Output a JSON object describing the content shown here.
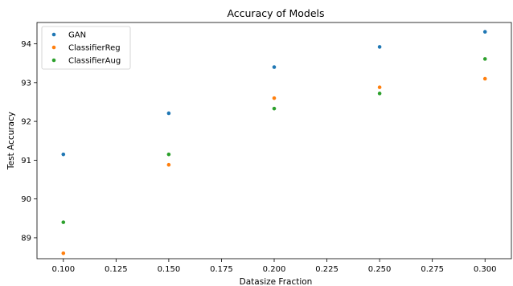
{
  "chart_data": {
    "type": "scatter",
    "title": "Accuracy of Models",
    "xlabel": "Datasize Fraction",
    "ylabel": "Test Accuracy",
    "xlim": [
      0.0875,
      0.3125
    ],
    "ylim": [
      88.46,
      94.55
    ],
    "x_ticks": [
      "0.100",
      "0.125",
      "0.150",
      "0.175",
      "0.200",
      "0.225",
      "0.250",
      "0.275",
      "0.300"
    ],
    "y_ticks": [
      "89",
      "90",
      "91",
      "92",
      "93",
      "94"
    ],
    "legend_position": "upper-left",
    "grid": false,
    "series": [
      {
        "name": "GAN",
        "color": "#1f77b4",
        "x": [
          0.1,
          0.15,
          0.2,
          0.25,
          0.3
        ],
        "y": [
          91.15,
          92.21,
          93.4,
          93.92,
          94.31
        ]
      },
      {
        "name": "ClassifierReg",
        "color": "#ff7f0e",
        "x": [
          0.1,
          0.15,
          0.2,
          0.25,
          0.3
        ],
        "y": [
          88.6,
          90.88,
          92.6,
          92.88,
          93.1
        ]
      },
      {
        "name": "ClassifierAug",
        "color": "#2ca02c",
        "x": [
          0.1,
          0.15,
          0.2,
          0.25,
          0.3
        ],
        "y": [
          89.4,
          91.15,
          92.33,
          92.72,
          93.61
        ]
      }
    ]
  }
}
